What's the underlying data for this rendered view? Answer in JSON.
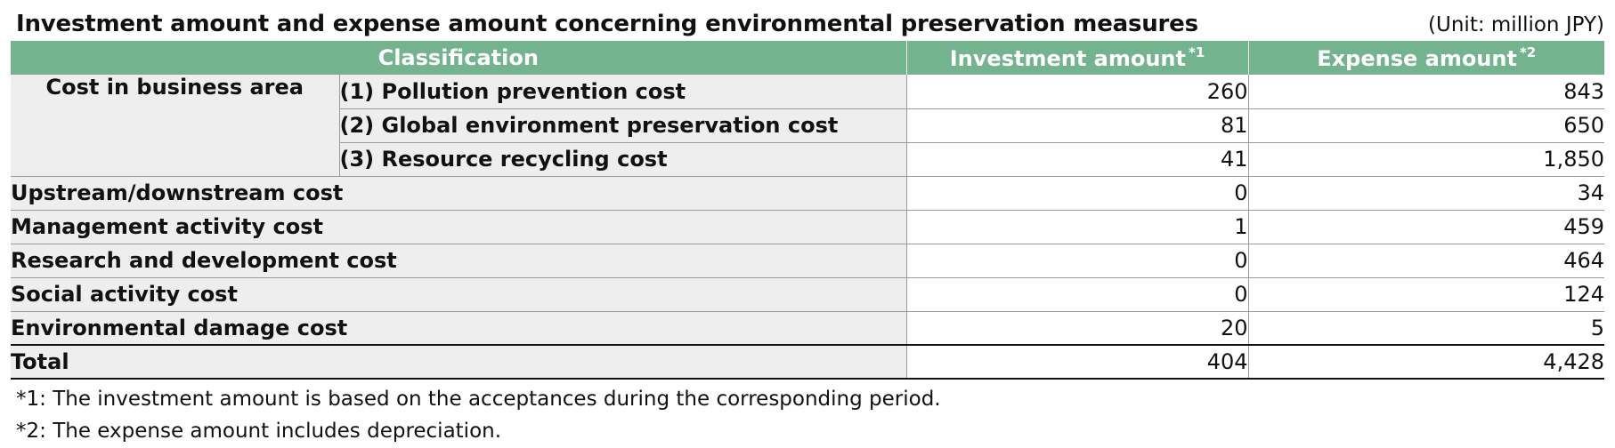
{
  "title": "Investment amount and expense amount concerning environmental preservation measures",
  "unit": "(Unit: million JPY)",
  "headers": {
    "classification": "Classification",
    "investment": "Investment amount",
    "investment_mark": "*1",
    "expense": "Expense amount",
    "expense_mark": "*2"
  },
  "business_area": {
    "label": "Cost in business area",
    "rows": [
      {
        "label": "(1) Pollution prevention cost",
        "investment": "260",
        "expense": "843"
      },
      {
        "label": "(2) Global environment preservation cost",
        "investment": "81",
        "expense": "650"
      },
      {
        "label": "(3) Resource recycling cost",
        "investment": "41",
        "expense": "1,850"
      }
    ]
  },
  "rows": [
    {
      "label": "Upstream/downstream cost",
      "investment": "0",
      "expense": "34"
    },
    {
      "label": "Management activity cost",
      "investment": "1",
      "expense": "459"
    },
    {
      "label": "Research and development cost",
      "investment": "0",
      "expense": "464"
    },
    {
      "label": "Social activity cost",
      "investment": "0",
      "expense": "124"
    },
    {
      "label": "Environmental damage cost",
      "investment": "20",
      "expense": "5"
    }
  ],
  "total": {
    "label": "Total",
    "investment": "404",
    "expense": "4,428"
  },
  "notes": [
    "*1: The investment amount is based on the acceptances during the corresponding period.",
    "*2: The expense amount includes depreciation."
  ]
}
